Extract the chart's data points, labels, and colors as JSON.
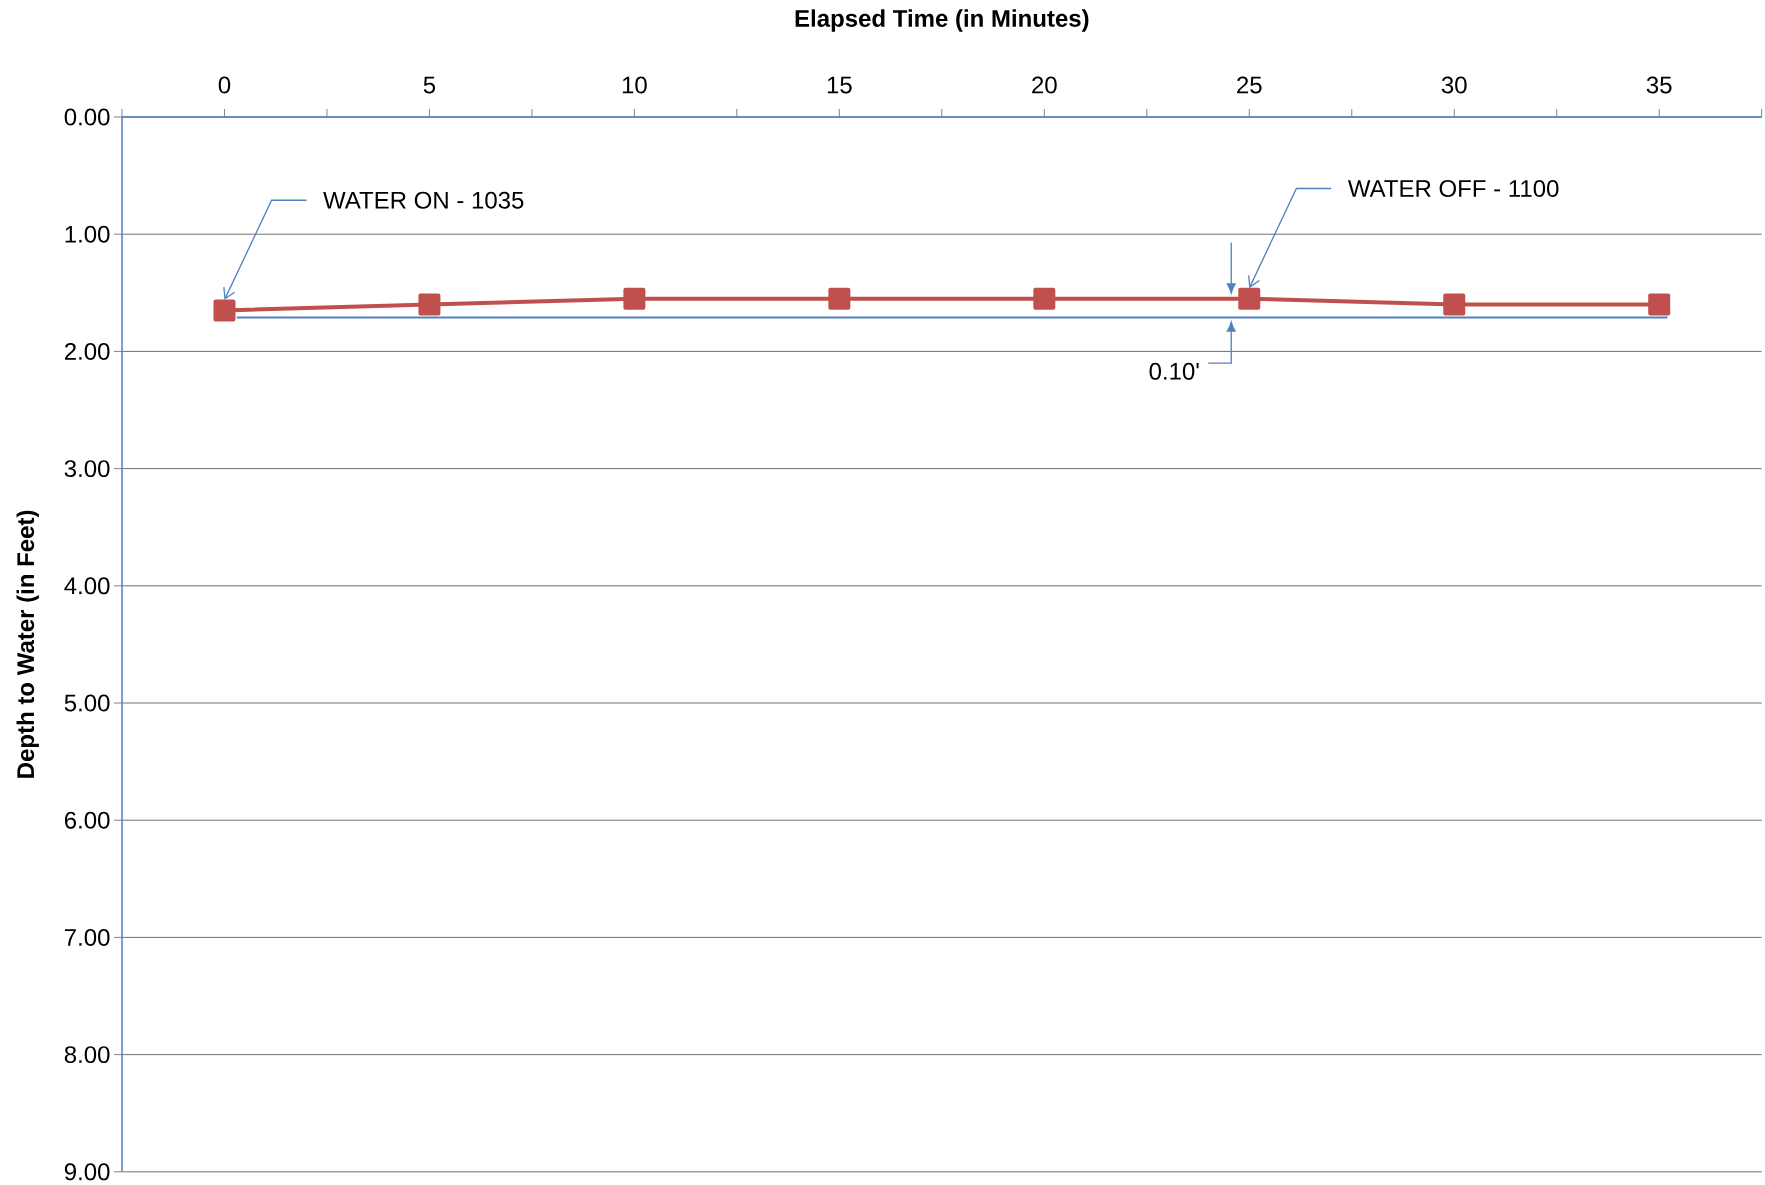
{
  "chart_data": {
    "type": "line",
    "xlabel": "Elapsed Time (in Minutes)",
    "ylabel": "Depth to Water (in Feet)",
    "x": [
      0,
      5,
      10,
      15,
      20,
      25,
      30,
      35
    ],
    "series": [
      {
        "color": "#c0504d",
        "values": [
          1.65,
          1.6,
          1.55,
          1.55,
          1.55,
          1.55,
          1.6,
          1.6
        ],
        "marker": "square"
      },
      {
        "color": "#4f81bd",
        "x": [
          0.3,
          35.2
        ],
        "values": [
          1.71,
          1.71
        ],
        "marker": "none"
      }
    ],
    "xlim": [
      -2.5,
      37.5
    ],
    "xticks": [
      {
        "value": -2.5,
        "label": null
      },
      0,
      {
        "value": 2.5,
        "label": null
      },
      5,
      {
        "value": 7.5,
        "label": null
      },
      10,
      {
        "value": 12.5,
        "label": null
      },
      15,
      {
        "value": 17.5,
        "label": null
      },
      20,
      {
        "value": 22.5,
        "label": null
      },
      25,
      {
        "value": 27.5,
        "label": null
      },
      30,
      {
        "value": 32.5,
        "label": null
      },
      35,
      {
        "value": 37.5,
        "label": null
      }
    ],
    "ylim": [
      9,
      0
    ],
    "yticks": [
      {
        "value": 0,
        "label": "0.00"
      },
      {
        "value": 1,
        "label": "1.00"
      },
      {
        "value": 2,
        "label": "2.00"
      },
      {
        "value": 3,
        "label": "3.00"
      },
      {
        "value": 4,
        "label": "4.00"
      },
      {
        "value": 5,
        "label": "5.00"
      },
      {
        "value": 6,
        "label": "6.00"
      },
      {
        "value": 7,
        "label": "7.00"
      },
      {
        "value": 8,
        "label": "8.00"
      },
      {
        "value": 9,
        "label": "9.00"
      }
    ],
    "grid": "y",
    "annotations": [
      {
        "text": "WATER ON - 1035",
        "x": 0,
        "y": 1.56
      },
      {
        "text": "WATER OFF - 1100",
        "x": 25,
        "y": 1.46
      },
      "0.10'"
    ]
  }
}
